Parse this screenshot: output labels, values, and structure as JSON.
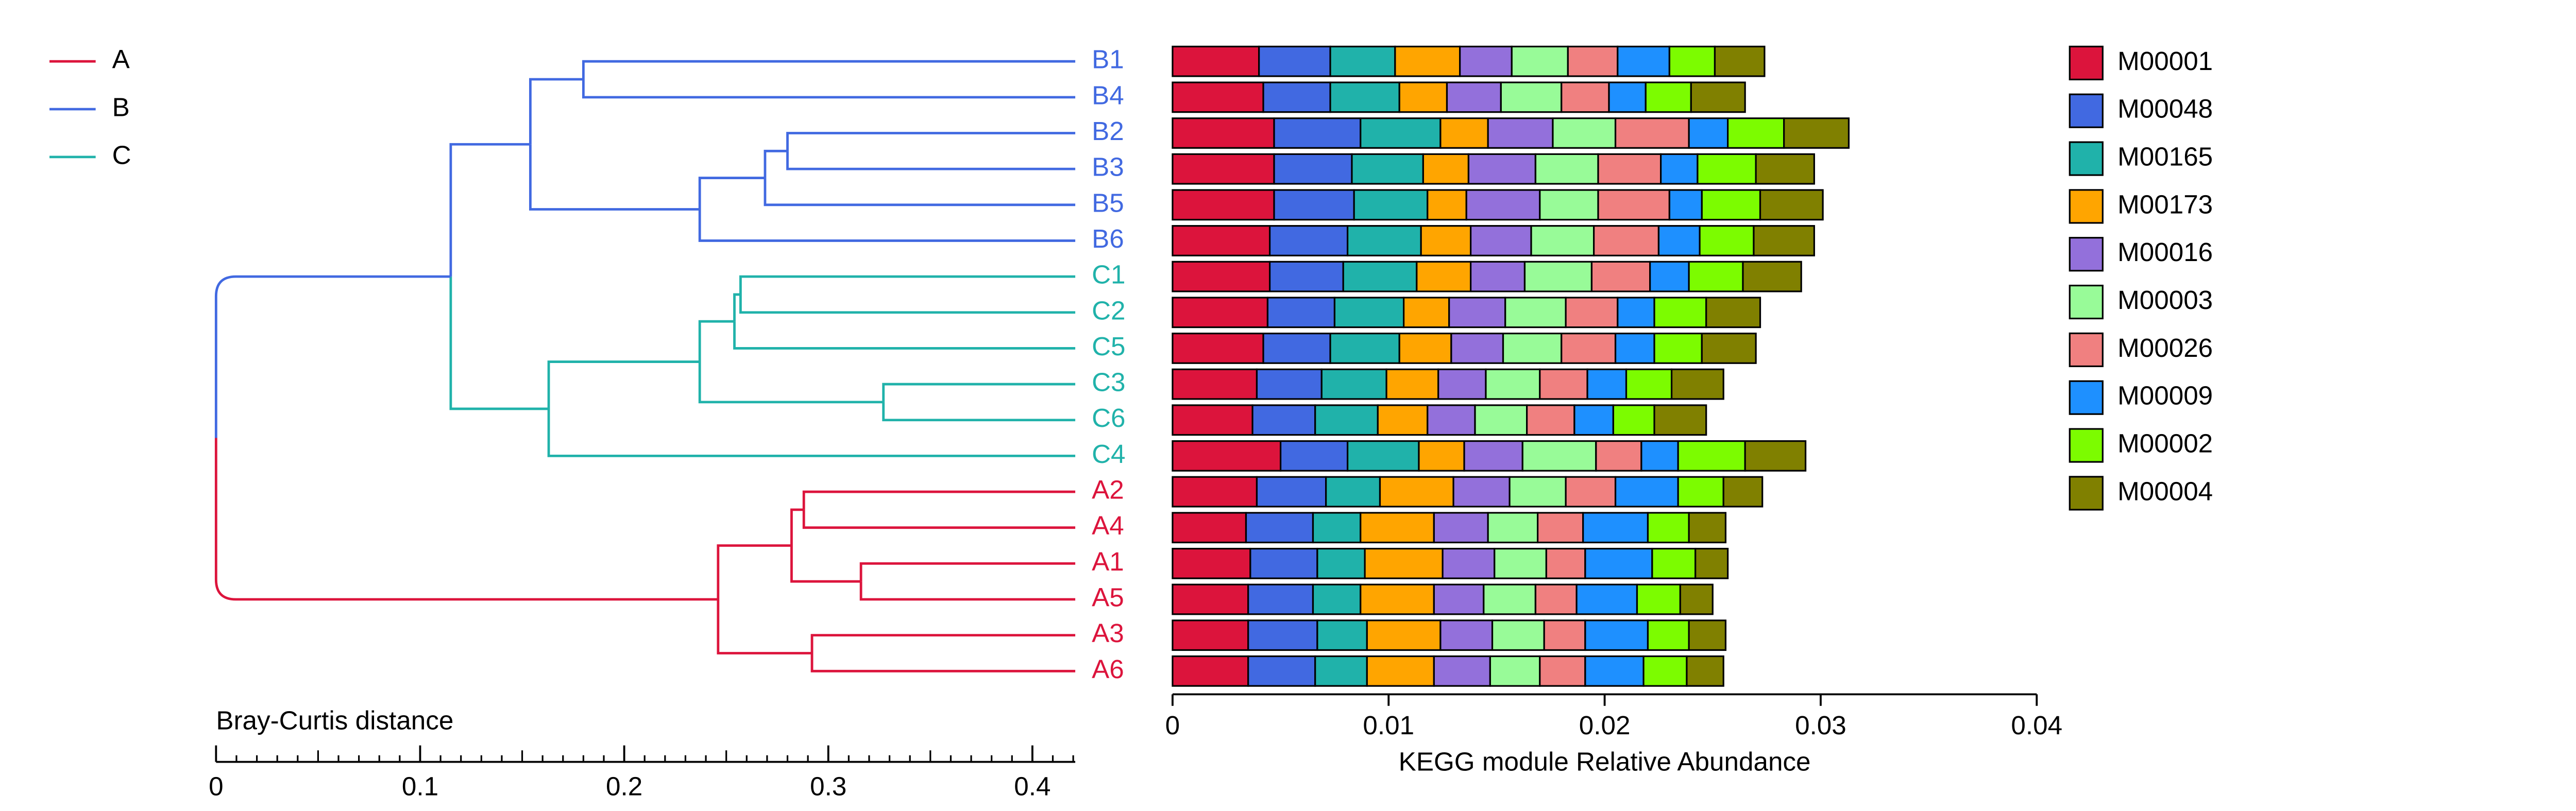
{
  "chart_data": [
    {
      "type": "dendrogram",
      "xlabel": "Bray-Curtis distance",
      "xlim": [
        0,
        0.421
      ],
      "xticks": [
        0,
        0.1,
        0.2,
        0.3,
        0.4
      ],
      "xmid_ticks": [
        0.05,
        0.15,
        0.25,
        0.35
      ],
      "xminor_ticks": [
        0.01,
        0.02,
        0.03,
        0.04,
        0.06,
        0.07,
        0.08,
        0.09,
        0.11,
        0.12,
        0.13,
        0.14,
        0.16,
        0.17,
        0.18,
        0.19,
        0.21,
        0.22,
        0.23,
        0.24,
        0.26,
        0.27,
        0.28,
        0.29,
        0.31,
        0.32,
        0.33,
        0.34,
        0.36,
        0.37,
        0.38,
        0.39,
        0.41,
        0.42
      ],
      "groups": [
        {
          "name": "A",
          "color": "#dc143c"
        },
        {
          "name": "B",
          "color": "#4169e1"
        },
        {
          "name": "C",
          "color": "#20b2aa"
        }
      ],
      "leaf_groups": [
        1,
        1,
        1,
        1,
        1,
        1,
        2,
        2,
        2,
        2,
        2,
        2,
        0,
        0,
        0,
        0,
        0,
        0
      ],
      "tree": {
        "height": 0,
        "children": [
          {
            "height": 0.115,
            "children": [
              {
                "height": 0.154,
                "children": [
                  {
                    "height": 0.18,
                    "children": [
                      {
                        "leaf": 0
                      },
                      {
                        "leaf": 1
                      }
                    ]
                  },
                  {
                    "height": 0.237,
                    "children": [
                      {
                        "height": 0.269,
                        "children": [
                          {
                            "height": 0.28,
                            "children": [
                              {
                                "leaf": 2
                              },
                              {
                                "leaf": 3
                              }
                            ]
                          },
                          {
                            "leaf": 4
                          }
                        ]
                      },
                      {
                        "leaf": 5
                      }
                    ]
                  }
                ]
              },
              {
                "height": 0.163,
                "children": [
                  {
                    "height": 0.237,
                    "children": [
                      {
                        "height": 0.254,
                        "children": [
                          {
                            "height": 0.257,
                            "children": [
                              {
                                "leaf": 6
                              },
                              {
                                "leaf": 7
                              }
                            ]
                          },
                          {
                            "leaf": 8
                          }
                        ]
                      },
                      {
                        "height": 0.327,
                        "children": [
                          {
                            "leaf": 9
                          },
                          {
                            "leaf": 10
                          }
                        ]
                      }
                    ]
                  },
                  {
                    "leaf": 11
                  }
                ]
              }
            ]
          },
          {
            "height": 0.246,
            "children": [
              {
                "height": 0.282,
                "children": [
                  {
                    "height": 0.288,
                    "children": [
                      {
                        "leaf": 12
                      },
                      {
                        "leaf": 13
                      }
                    ]
                  },
                  {
                    "height": 0.316,
                    "children": [
                      {
                        "leaf": 14
                      },
                      {
                        "leaf": 15
                      }
                    ]
                  }
                ]
              },
              {
                "height": 0.292,
                "children": [
                  {
                    "leaf": 16
                  },
                  {
                    "leaf": 17
                  }
                ]
              }
            ]
          }
        ]
      }
    },
    {
      "type": "stacked_barh",
      "xlabel": "KEGG module Relative Abundance",
      "xlim": [
        0,
        0.04
      ],
      "xticks": [
        0,
        0.01,
        0.02,
        0.03,
        0.04
      ],
      "categories": [
        "B1",
        "B4",
        "B2",
        "B3",
        "B5",
        "B6",
        "C1",
        "C2",
        "C5",
        "C3",
        "C6",
        "C4",
        "A2",
        "A4",
        "A1",
        "A5",
        "A3",
        "A6"
      ],
      "series": [
        {
          "name": "M00001",
          "color": "#dc143c",
          "values": [
            0.004,
            0.0042,
            0.0047,
            0.0047,
            0.0047,
            0.0045,
            0.0045,
            0.0044,
            0.0042,
            0.0039,
            0.0037,
            0.005,
            0.0039,
            0.0034,
            0.0036,
            0.0035,
            0.0035,
            0.0035
          ]
        },
        {
          "name": "M00048",
          "color": "#4169e1",
          "values": [
            0.0033,
            0.0031,
            0.004,
            0.0036,
            0.0037,
            0.0036,
            0.0034,
            0.0031,
            0.0031,
            0.003,
            0.0029,
            0.0031,
            0.0032,
            0.0031,
            0.0031,
            0.003,
            0.0032,
            0.0031
          ]
        },
        {
          "name": "M00165",
          "color": "#20b2aa",
          "values": [
            0.003,
            0.0032,
            0.0037,
            0.0033,
            0.0034,
            0.0034,
            0.0034,
            0.0032,
            0.0032,
            0.003,
            0.0029,
            0.0033,
            0.0025,
            0.0022,
            0.0022,
            0.0022,
            0.0023,
            0.0024
          ]
        },
        {
          "name": "M00173",
          "color": "#ffa500",
          "values": [
            0.003,
            0.0022,
            0.0022,
            0.0021,
            0.0018,
            0.0023,
            0.0025,
            0.0021,
            0.0024,
            0.0024,
            0.0023,
            0.0021,
            0.0034,
            0.0034,
            0.0036,
            0.0034,
            0.0034,
            0.0031
          ]
        },
        {
          "name": "M00016",
          "color": "#9370db",
          "values": [
            0.0024,
            0.0025,
            0.003,
            0.0031,
            0.0034,
            0.0028,
            0.0025,
            0.0026,
            0.0024,
            0.0022,
            0.0022,
            0.0027,
            0.0026,
            0.0025,
            0.0024,
            0.0023,
            0.0024,
            0.0026
          ]
        },
        {
          "name": "M00003",
          "color": "#98fb98",
          "values": [
            0.0026,
            0.0028,
            0.0029,
            0.0029,
            0.0027,
            0.0029,
            0.0031,
            0.0028,
            0.0027,
            0.0025,
            0.0024,
            0.0034,
            0.0026,
            0.0023,
            0.0024,
            0.0024,
            0.0024,
            0.0023
          ]
        },
        {
          "name": "M00026",
          "color": "#f08080",
          "values": [
            0.0023,
            0.0022,
            0.0034,
            0.0029,
            0.0033,
            0.003,
            0.0027,
            0.0024,
            0.0025,
            0.0022,
            0.0022,
            0.0021,
            0.0023,
            0.0021,
            0.0018,
            0.0019,
            0.0019,
            0.0021
          ]
        },
        {
          "name": "M00009",
          "color": "#1e90ff",
          "values": [
            0.0024,
            0.0017,
            0.0018,
            0.0017,
            0.0015,
            0.0019,
            0.0018,
            0.0017,
            0.0018,
            0.0018,
            0.0018,
            0.0017,
            0.0029,
            0.003,
            0.0031,
            0.0028,
            0.0029,
            0.0027
          ]
        },
        {
          "name": "M00002",
          "color": "#7cfc00",
          "values": [
            0.0021,
            0.0021,
            0.0026,
            0.0027,
            0.0027,
            0.0025,
            0.0025,
            0.0024,
            0.0022,
            0.0021,
            0.0019,
            0.0031,
            0.0021,
            0.0019,
            0.002,
            0.002,
            0.0019,
            0.002
          ]
        },
        {
          "name": "M00004",
          "color": "#808000",
          "values": [
            0.0023,
            0.0025,
            0.003,
            0.0027,
            0.0029,
            0.0028,
            0.0027,
            0.0025,
            0.0025,
            0.0024,
            0.0024,
            0.0028,
            0.0018,
            0.0017,
            0.0015,
            0.0015,
            0.0017,
            0.0017
          ]
        }
      ]
    }
  ]
}
